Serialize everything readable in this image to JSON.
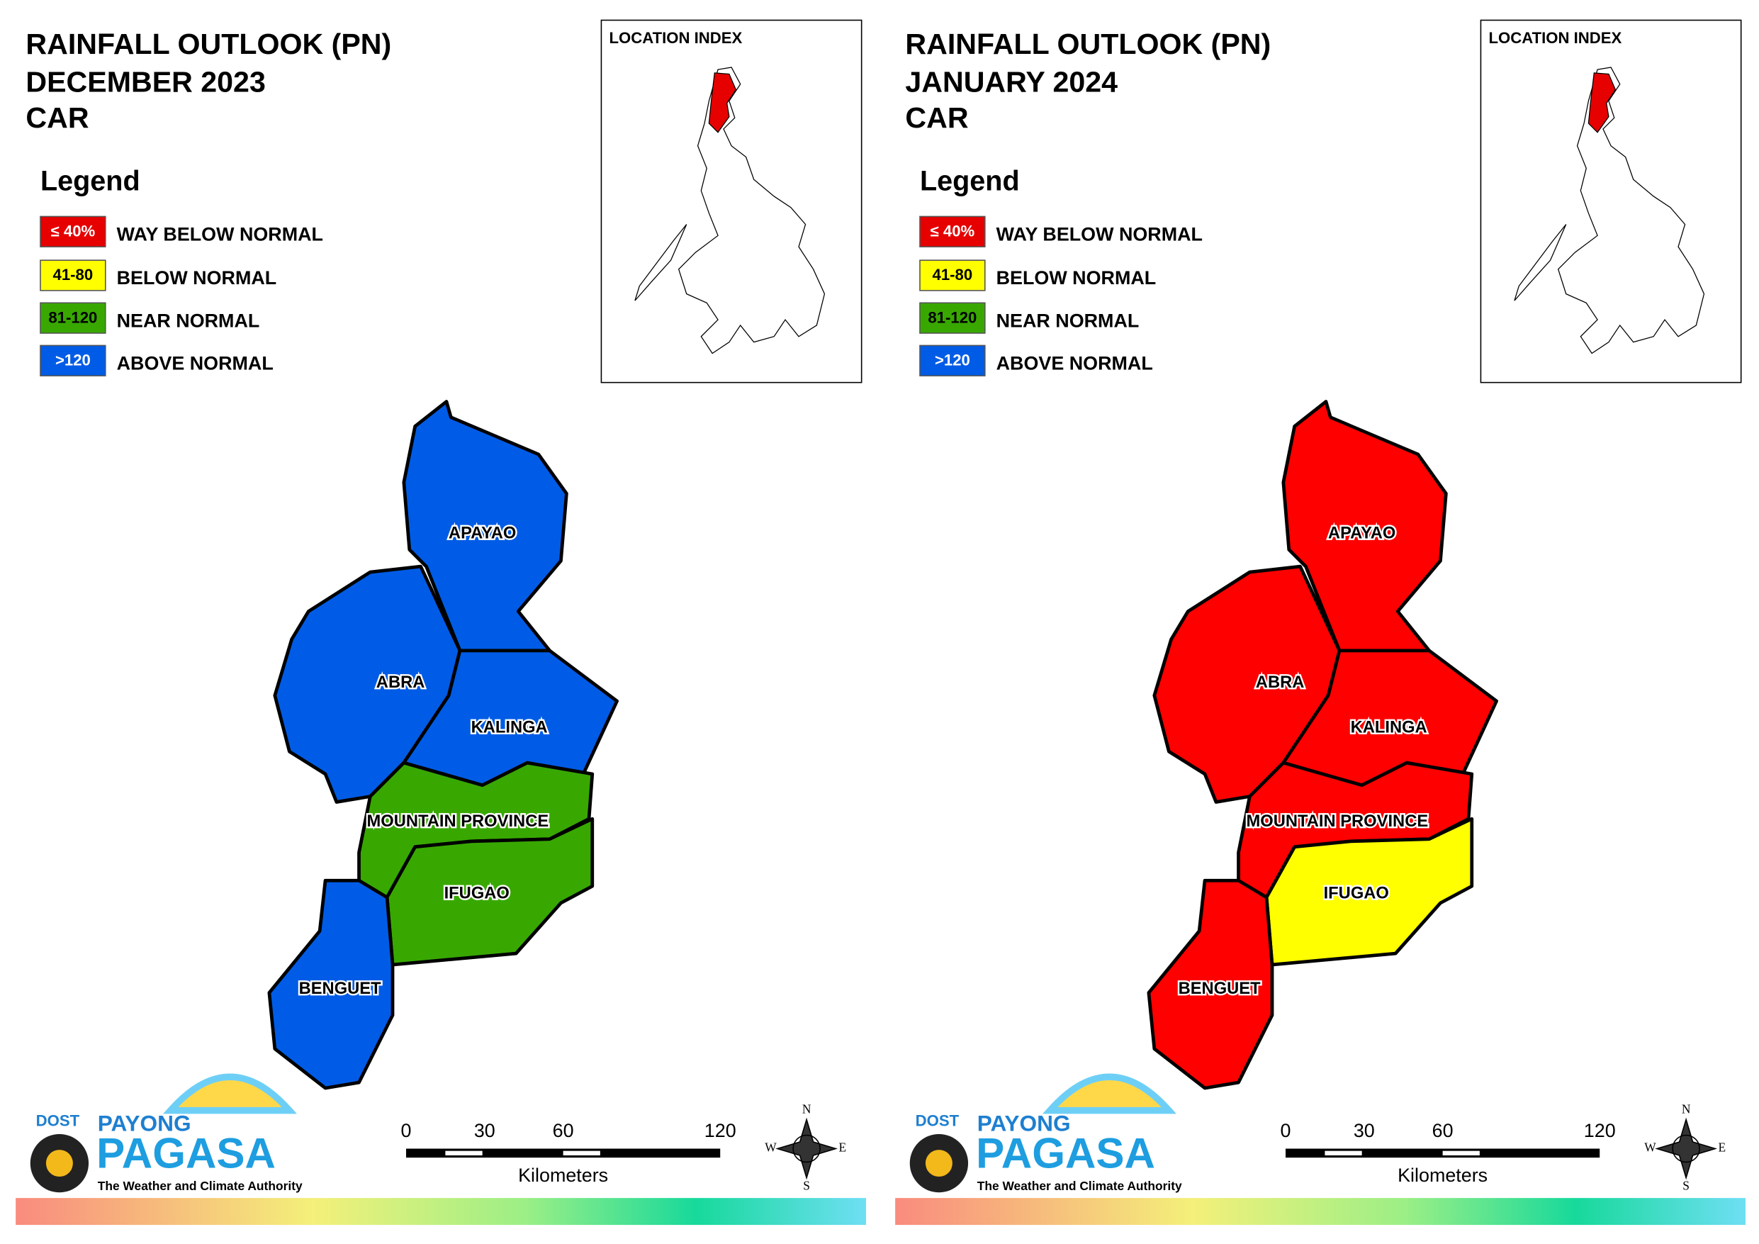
{
  "panels": [
    {
      "title": [
        "RAINFALL OUTLOOK (PN)",
        "DECEMBER 2023",
        "CAR"
      ],
      "location_index": "LOCATION INDEX",
      "legend": {
        "title": "Legend",
        "items": [
          {
            "range": "≤ 40%",
            "label": "WAY BELOW NORMAL",
            "color": "#e60000"
          },
          {
            "range": "41-80",
            "label": "BELOW NORMAL",
            "color": "#ffff00"
          },
          {
            "range": "81-120",
            "label": "NEAR NORMAL",
            "color": "#38a800"
          },
          {
            "range": ">120",
            "label": "ABOVE NORMAL",
            "color": "#005ce6"
          }
        ]
      },
      "provinces": [
        {
          "name": "APAYAO",
          "color": "#005ce6"
        },
        {
          "name": "ABRA",
          "color": "#005ce6"
        },
        {
          "name": "KALINGA",
          "color": "#005ce6"
        },
        {
          "name": "MOUNTAIN PROVINCE",
          "color": "#38a800"
        },
        {
          "name": "IFUGAO",
          "color": "#38a800"
        },
        {
          "name": "BENGUET",
          "color": "#005ce6"
        }
      ],
      "scale": {
        "ticks": [
          0,
          30,
          60,
          120
        ],
        "unit": "Kilometers"
      },
      "compass": [
        "N",
        "E",
        "S",
        "W"
      ],
      "logo": {
        "dost": "DOST",
        "payong": "PAYONG",
        "pagasa": "PAGASA",
        "tagline": "The Weather and Climate Authority"
      }
    },
    {
      "title": [
        "RAINFALL OUTLOOK (PN)",
        "JANUARY 2024",
        "CAR"
      ],
      "location_index": "LOCATION INDEX",
      "legend": {
        "title": "Legend",
        "items": [
          {
            "range": "≤ 40%",
            "label": "WAY BELOW NORMAL",
            "color": "#e60000"
          },
          {
            "range": "41-80",
            "label": "BELOW NORMAL",
            "color": "#ffff00"
          },
          {
            "range": "81-120",
            "label": "NEAR NORMAL",
            "color": "#38a800"
          },
          {
            "range": ">120",
            "label": "ABOVE NORMAL",
            "color": "#005ce6"
          }
        ]
      },
      "provinces": [
        {
          "name": "APAYAO",
          "color": "#ff0000"
        },
        {
          "name": "ABRA",
          "color": "#ff0000"
        },
        {
          "name": "KALINGA",
          "color": "#ff0000"
        },
        {
          "name": "MOUNTAIN PROVINCE",
          "color": "#ff0000"
        },
        {
          "name": "IFUGAO",
          "color": "#ffff00"
        },
        {
          "name": "BENGUET",
          "color": "#ff0000"
        }
      ],
      "scale": {
        "ticks": [
          0,
          30,
          60,
          120
        ],
        "unit": "Kilometers"
      },
      "compass": [
        "N",
        "E",
        "S",
        "W"
      ],
      "logo": {
        "dost": "DOST",
        "payong": "PAYONG",
        "pagasa": "PAGASA",
        "tagline": "The Weather and Climate Authority"
      }
    }
  ]
}
